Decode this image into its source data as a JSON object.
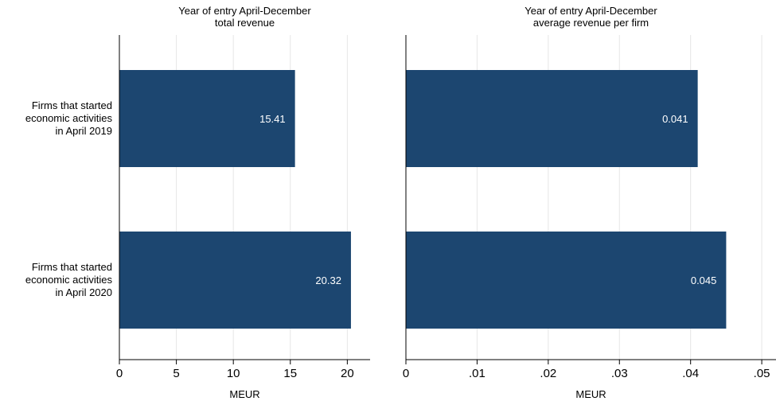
{
  "chart_data": [
    {
      "type": "bar",
      "orientation": "horizontal",
      "title_line1": "Year of entry April-December",
      "title_line2": "total revenue",
      "categories": [
        [
          "Firms that started",
          "economic activities",
          "in April 2019"
        ],
        [
          "Firms that started",
          "economic activities",
          "in April 2020"
        ]
      ],
      "values": [
        15.41,
        20.32
      ],
      "value_labels": [
        "15.41",
        "20.32"
      ],
      "xlabel": "MEUR",
      "xlim": [
        0,
        22
      ],
      "xticks": [
        0,
        5,
        10,
        15,
        20
      ],
      "xtick_labels": [
        "0",
        "5",
        "10",
        "15",
        "20"
      ],
      "grid": true,
      "bar_color": "#1c4670"
    },
    {
      "type": "bar",
      "orientation": "horizontal",
      "title_line1": "Year of entry April-December",
      "title_line2": "average revenue per firm",
      "categories": [
        [
          "Firms that started",
          "economic activities",
          "in April 2019"
        ],
        [
          "Firms that started",
          "economic activities",
          "in April 2020"
        ]
      ],
      "values": [
        0.041,
        0.045
      ],
      "value_labels": [
        "0.041",
        "0.045"
      ],
      "xlabel": "MEUR",
      "xlim": [
        0,
        0.052
      ],
      "xticks": [
        0,
        0.01,
        0.02,
        0.03,
        0.04,
        0.05
      ],
      "xtick_labels": [
        "0",
        ".01",
        ".02",
        ".03",
        ".04",
        ".05"
      ],
      "grid": true,
      "bar_color": "#1c4670"
    }
  ]
}
